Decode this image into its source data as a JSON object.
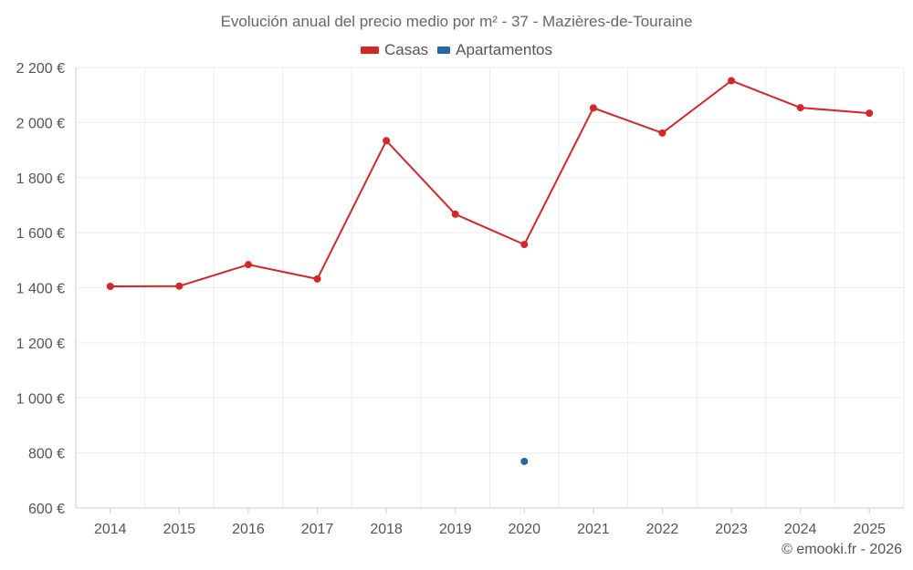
{
  "colors": {
    "casas": "#d62728",
    "apartamentos": "#1f6aa5",
    "grid": "#ececec",
    "axis": "#cccccc"
  },
  "credit": "© emooki.fr - 2026",
  "chart_data": {
    "type": "line",
    "title": "Evolución anual del precio medio por m² - 37 - Mazières-de-Touraine",
    "categories": [
      "2014",
      "2015",
      "2016",
      "2017",
      "2018",
      "2019",
      "2020",
      "2021",
      "2022",
      "2023",
      "2024",
      "2025"
    ],
    "series": [
      {
        "name": "Casas",
        "color": "#d62728",
        "values": [
          1405,
          1406,
          1484,
          1432,
          1934,
          1667,
          1557,
          2053,
          1962,
          2152,
          2054,
          2034
        ]
      },
      {
        "name": "Apartamentos",
        "color": "#1f6aa5",
        "values": [
          null,
          null,
          null,
          null,
          null,
          null,
          769,
          null,
          null,
          null,
          null,
          null
        ]
      }
    ],
    "ylim": [
      600,
      2200
    ],
    "yticks": [
      600,
      800,
      1000,
      1200,
      1400,
      1600,
      1800,
      2000,
      2200
    ],
    "ytick_labels": [
      "600 €",
      "800 €",
      "1 000 €",
      "1 200 €",
      "1 400 €",
      "1 600 €",
      "1 800 €",
      "2 000 €",
      "2 200 €"
    ],
    "grid": true,
    "legend_position": "top-center"
  }
}
